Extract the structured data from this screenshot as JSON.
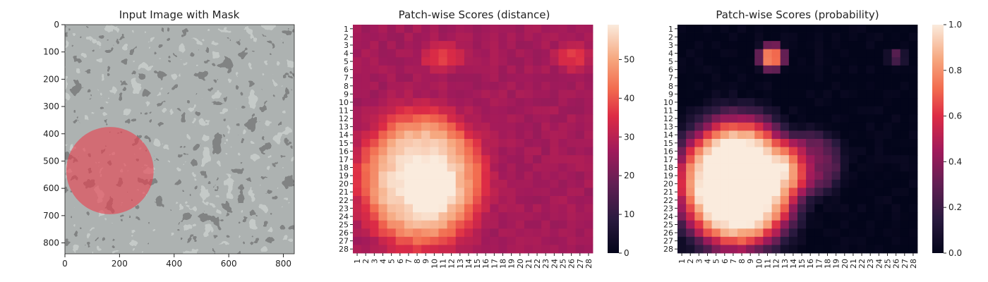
{
  "chart_data": [
    {
      "type": "image",
      "title": "Input Image with Mask",
      "xlim": [
        0,
        840
      ],
      "ylim": [
        840,
        0
      ],
      "xticks": [
        0,
        200,
        400,
        600,
        800
      ],
      "yticks": [
        0,
        100,
        200,
        300,
        400,
        500,
        600,
        700,
        800
      ],
      "mask": {
        "center": [
          165,
          535
        ],
        "radius": 160,
        "color": "#e8414f"
      }
    },
    {
      "type": "heatmap",
      "title": "Patch-wise Scores (distance)",
      "rows": 28,
      "cols": 28,
      "labels": [
        "1",
        "2",
        "3",
        "4",
        "5",
        "6",
        "7",
        "8",
        "9",
        "10",
        "11",
        "12",
        "13",
        "14",
        "15",
        "16",
        "17",
        "18",
        "19",
        "20",
        "21",
        "22",
        "23",
        "24",
        "25",
        "26",
        "27",
        "28"
      ],
      "colorbar": {
        "vmin": 0,
        "vmax": 59,
        "ticks": [
          0,
          10,
          20,
          30,
          40,
          50
        ]
      },
      "background": 27,
      "blobs": [
        {
          "cx": 8.5,
          "cy": 19.5,
          "rx": 6.5,
          "ry": 7.5,
          "amp": 30
        },
        {
          "cx": 9.5,
          "cy": 20.5,
          "rx": 2.5,
          "ry": 3,
          "amp": 12
        },
        {
          "cx": 11,
          "cy": 4.5,
          "rx": 2.5,
          "ry": 1.5,
          "amp": 9
        },
        {
          "cx": 26,
          "cy": 4.5,
          "rx": 2,
          "ry": 1.5,
          "amp": 9
        }
      ]
    },
    {
      "type": "heatmap",
      "title": "Patch-wise Scores (probability)",
      "rows": 28,
      "cols": 28,
      "labels": [
        "1",
        "2",
        "3",
        "4",
        "5",
        "6",
        "7",
        "8",
        "9",
        "10",
        "11",
        "12",
        "13",
        "14",
        "15",
        "16",
        "17",
        "18",
        "19",
        "20",
        "21",
        "22",
        "23",
        "24",
        "25",
        "26",
        "27",
        "28"
      ],
      "colorbar": {
        "vmin": 0,
        "vmax": 1,
        "ticks": [
          "0.0",
          "0.2",
          "0.4",
          "0.6",
          "0.8",
          "1.0"
        ]
      },
      "background": 0,
      "blobs": [
        {
          "cx": 7.5,
          "cy": 20,
          "rx": 6.5,
          "ry": 7.5,
          "amp": 1.15
        },
        {
          "cx": 11.5,
          "cy": 4.5,
          "rx": 1.5,
          "ry": 1.5,
          "amp": 0.75
        },
        {
          "cx": 26,
          "cy": 4.5,
          "rx": 1,
          "ry": 1,
          "amp": 0.25
        },
        {
          "cx": 16,
          "cy": 17.5,
          "rx": 3.5,
          "ry": 3.5,
          "amp": 0.35
        }
      ]
    }
  ]
}
